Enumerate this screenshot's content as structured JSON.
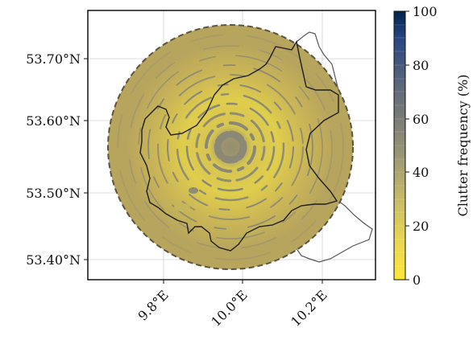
{
  "map": {
    "lat_ticks": [
      {
        "label": "53.70°N",
        "value": 53.7
      },
      {
        "label": "53.60°N",
        "value": 53.6
      },
      {
        "label": "53.50°N",
        "value": 53.5
      },
      {
        "label": "53.40°N",
        "value": 53.4
      }
    ],
    "lon_ticks": [
      {
        "label": "9.8°E",
        "value": 9.8
      },
      {
        "label": "10.0°E",
        "value": 10.0
      },
      {
        "label": "10.2°E",
        "value": 10.2
      }
    ],
    "radar_range_style": "dashed circle",
    "background_color": "#b7a45d",
    "high_clutter_color": "#8c8a78",
    "low_clutter_color": "#f0dc3a"
  },
  "colorbar": {
    "title": "Clutter frequency (%)",
    "ticks": [
      "0",
      "20",
      "40",
      "60",
      "80",
      "100"
    ],
    "colormap": "cividis (reversed)",
    "colors": [
      "#fde737",
      "#ecd852",
      "#d7c864",
      "#c0b56b",
      "#a9a470",
      "#959378",
      "#80827a",
      "#6a717a",
      "#566478",
      "#3d5580",
      "#284683",
      "#12356c",
      "#00224e"
    ]
  }
}
